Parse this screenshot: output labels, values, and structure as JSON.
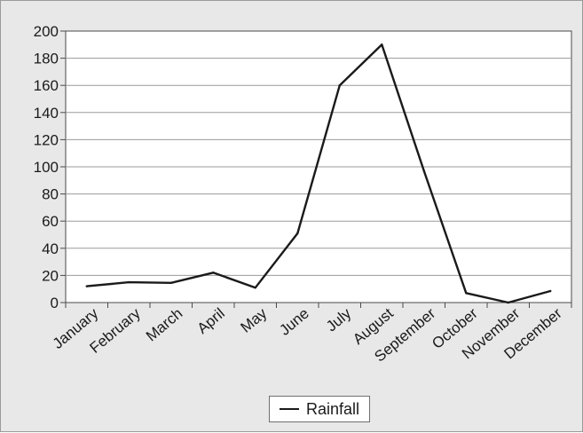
{
  "chart_data": {
    "type": "line",
    "title": "",
    "xlabel": "",
    "ylabel": "",
    "categories": [
      "January",
      "February",
      "March",
      "April",
      "May",
      "June",
      "July",
      "August",
      "September",
      "October",
      "November",
      "December"
    ],
    "series": [
      {
        "name": "Rainfall",
        "values": [
          12,
          15,
          14.5,
          22,
          11,
          51,
          160,
          190,
          97,
          7,
          0,
          8.5
        ]
      }
    ],
    "ylim": [
      0,
      200
    ],
    "yticks": [
      0,
      20,
      40,
      60,
      80,
      100,
      120,
      140,
      160,
      180,
      200
    ],
    "grid": "horizontal",
    "legend_position": "bottom",
    "line_color": "#1a1a1a"
  }
}
